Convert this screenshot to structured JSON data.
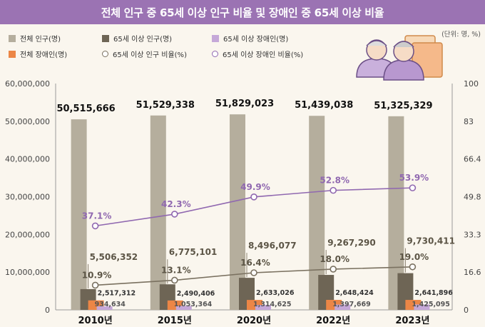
{
  "title": "전체 인구 중 65세 이상 인구 비율 및 장애인 중 65세 이상 비율",
  "unit": "(단위: 명, %)",
  "legend": [
    {
      "label": "전체 인구(명)",
      "color": "#b5ae9d",
      "kind": "square"
    },
    {
      "label": "65세 이상 인구(명)",
      "color": "#6e6555",
      "kind": "square"
    },
    {
      "label": "65세 이상 장애인(명)",
      "color": "#c5a8d8",
      "kind": "square"
    },
    {
      "label": "전체 장애인(명)",
      "color": "#ec8646",
      "kind": "square"
    },
    {
      "label": "65세 이상 인구 비율(%)",
      "color": "#7a7160",
      "kind": "circle"
    },
    {
      "label": "65세 이상 장애인 비율(%)",
      "color": "#9068b0",
      "kind": "circle"
    }
  ],
  "chart_data": {
    "type": "bar",
    "categories": [
      "2010년",
      "2015년",
      "2020년",
      "2022년",
      "2023년"
    ],
    "series": [
      {
        "name": "전체 인구(명)",
        "values": [
          50515666,
          51529338,
          51829023,
          51439038,
          51325329
        ],
        "labels": [
          "50,515,666",
          "51,529,338",
          "51,829,023",
          "51,439,038",
          "51,325,329"
        ]
      },
      {
        "name": "65세 이상 인구(명)",
        "values": [
          5506352,
          6775101,
          8496077,
          9267290,
          9730411
        ],
        "labels": [
          "5,506,352",
          "6,775,101",
          "8,496,077",
          "9,267,290",
          "9,730,411"
        ]
      },
      {
        "name": "전체 장애인(명)",
        "values": [
          2517312,
          2490406,
          2633026,
          2648424,
          2641896
        ],
        "labels": [
          "2,517,312",
          "2,490,406",
          "2,633,026",
          "2,648,424",
          "2,641,896"
        ]
      },
      {
        "name": "65세 이상 장애인(명)",
        "values": [
          934634,
          1053364,
          1314625,
          1397669,
          1425095
        ],
        "labels": [
          "934,634",
          "1,053,364",
          "1,314,625",
          "1,397,669",
          "1,425,095"
        ]
      }
    ],
    "line_series": [
      {
        "name": "65세 이상 인구 비율(%)",
        "values": [
          10.9,
          13.1,
          16.4,
          18.0,
          19.0
        ],
        "labels": [
          "10.9%",
          "13.1%",
          "16.4%",
          "18.0%",
          "19.0%"
        ]
      },
      {
        "name": "65세 이상 장애인 비율(%)",
        "values": [
          37.1,
          42.3,
          49.9,
          52.8,
          53.9
        ],
        "labels": [
          "37.1%",
          "42.3%",
          "49.9%",
          "52.8%",
          "53.9%"
        ]
      }
    ],
    "ylim": [
      0,
      60000000
    ],
    "yticks": [
      "0",
      "10,000,000",
      "20,000,000",
      "30,000,000",
      "40,000,000",
      "50,000,000",
      "60,000,000"
    ],
    "y2lim": [
      0,
      100
    ],
    "y2ticks": [
      "0",
      "16.6",
      "33.3",
      "49.8",
      "66.4",
      "83",
      "100"
    ]
  }
}
